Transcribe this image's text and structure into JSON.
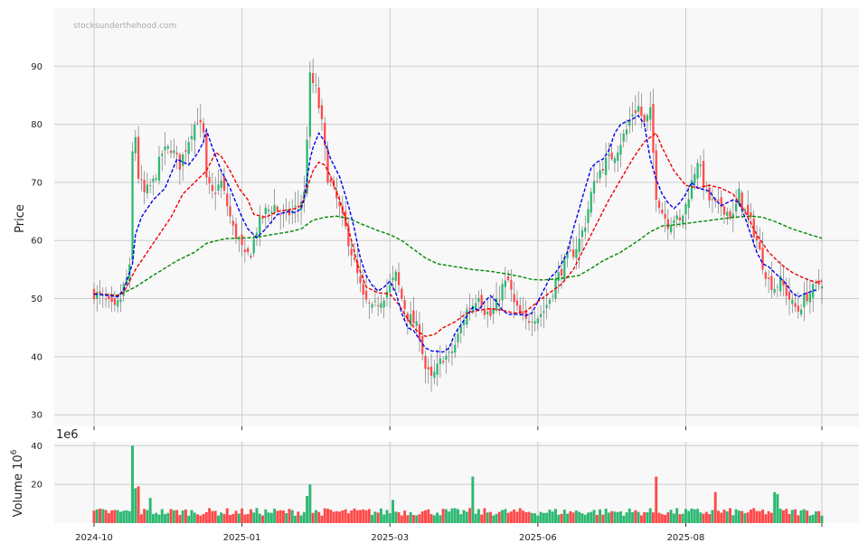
{
  "chart_data": [
    {
      "type": "candlestick",
      "watermark": "stocksunderthehood.com",
      "ylabel": "Price",
      "ylim": [
        28,
        100
      ],
      "yticks": [
        30,
        40,
        50,
        60,
        70,
        80,
        90
      ],
      "xticks": [
        "2024-10",
        "2025-01",
        "2025-03",
        "2025-06",
        "2025-08"
      ],
      "grid": true,
      "colors": {
        "up": "#2eb872",
        "down": "#ff4a4a",
        "ma_short": "#0000ee",
        "ma_mid": "#ee0000",
        "ma_long": "#008800",
        "panel_bg": "#f8f8f8",
        "grid": "#cccccc"
      },
      "close_anchors": [
        [
          0,
          51
        ],
        [
          3,
          50
        ],
        [
          5,
          49
        ],
        [
          7,
          48
        ],
        [
          9,
          50
        ],
        [
          10,
          52
        ],
        [
          12,
          55
        ],
        [
          13,
          75
        ],
        [
          14,
          78
        ],
        [
          15,
          71
        ],
        [
          17,
          68
        ],
        [
          20,
          70
        ],
        [
          23,
          75
        ],
        [
          26,
          76
        ],
        [
          29,
          73
        ],
        [
          31,
          76
        ],
        [
          33,
          79
        ],
        [
          35,
          81
        ],
        [
          37,
          78
        ],
        [
          38,
          70
        ],
        [
          40,
          68
        ],
        [
          43,
          70
        ],
        [
          45,
          66
        ],
        [
          47,
          62
        ],
        [
          49,
          60
        ],
        [
          51,
          57
        ],
        [
          53,
          58
        ],
        [
          55,
          62
        ],
        [
          58,
          65
        ],
        [
          61,
          66
        ],
        [
          64,
          64
        ],
        [
          67,
          65
        ],
        [
          69,
          66
        ],
        [
          71,
          68
        ],
        [
          73,
          88
        ],
        [
          75,
          86
        ],
        [
          77,
          80
        ],
        [
          79,
          71
        ],
        [
          82,
          67
        ],
        [
          85,
          62
        ],
        [
          88,
          56
        ],
        [
          91,
          50
        ],
        [
          94,
          48
        ],
        [
          97,
          50
        ],
        [
          100,
          52
        ],
        [
          102,
          54
        ],
        [
          104,
          50
        ],
        [
          106,
          47
        ],
        [
          108,
          46
        ],
        [
          110,
          44
        ],
        [
          112,
          38
        ],
        [
          114,
          36
        ],
        [
          116,
          38
        ],
        [
          118,
          40
        ],
        [
          120,
          40
        ],
        [
          122,
          42
        ],
        [
          124,
          45
        ],
        [
          126,
          48
        ],
        [
          128,
          49
        ],
        [
          130,
          51
        ],
        [
          132,
          48
        ],
        [
          134,
          47
        ],
        [
          136,
          49
        ],
        [
          138,
          52
        ],
        [
          140,
          53
        ],
        [
          142,
          49
        ],
        [
          144,
          47
        ],
        [
          146,
          46
        ],
        [
          148,
          47
        ],
        [
          150,
          47
        ],
        [
          152,
          48
        ],
        [
          154,
          50
        ],
        [
          156,
          53
        ],
        [
          158,
          55
        ],
        [
          160,
          57
        ],
        [
          162,
          58
        ],
        [
          164,
          60
        ],
        [
          166,
          63
        ],
        [
          168,
          68
        ],
        [
          170,
          71
        ],
        [
          172,
          73
        ],
        [
          174,
          74
        ],
        [
          176,
          75
        ],
        [
          178,
          77
        ],
        [
          180,
          79
        ],
        [
          182,
          82
        ],
        [
          184,
          83
        ],
        [
          186,
          80
        ],
        [
          188,
          82
        ],
        [
          190,
          68
        ],
        [
          192,
          65
        ],
        [
          194,
          63
        ],
        [
          196,
          64
        ],
        [
          198,
          63
        ],
        [
          200,
          66
        ],
        [
          202,
          70
        ],
        [
          204,
          74
        ],
        [
          206,
          70
        ],
        [
          208,
          67
        ],
        [
          210,
          66
        ],
        [
          212,
          66
        ],
        [
          214,
          65
        ],
        [
          216,
          64
        ],
        [
          218,
          68
        ],
        [
          220,
          65
        ],
        [
          222,
          63
        ],
        [
          224,
          60
        ],
        [
          226,
          56
        ],
        [
          228,
          53
        ],
        [
          230,
          52
        ],
        [
          232,
          53
        ],
        [
          234,
          51
        ],
        [
          236,
          49
        ],
        [
          238,
          48
        ],
        [
          240,
          50
        ],
        [
          242,
          51
        ],
        [
          244,
          52
        ],
        [
          246,
          53
        ]
      ],
      "ma_short": [
        [
          0,
          50.8
        ],
        [
          4,
          50.6
        ],
        [
          8,
          50.3
        ],
        [
          10,
          51.5
        ],
        [
          13,
          56
        ],
        [
          14,
          61
        ],
        [
          16,
          64
        ],
        [
          20,
          67
        ],
        [
          24,
          69
        ],
        [
          28,
          74
        ],
        [
          32,
          73
        ],
        [
          35,
          75
        ],
        [
          37,
          77
        ],
        [
          38,
          79
        ],
        [
          40,
          76
        ],
        [
          43,
          72
        ],
        [
          46,
          69
        ],
        [
          50,
          64
        ],
        [
          52,
          62
        ],
        [
          55,
          60.5
        ],
        [
          58,
          62
        ],
        [
          62,
          64.5
        ],
        [
          66,
          65
        ],
        [
          68,
          64.8
        ],
        [
          70,
          65.5
        ],
        [
          71,
          67
        ],
        [
          73,
          74
        ],
        [
          74,
          76
        ],
        [
          76,
          78.5
        ],
        [
          78,
          77
        ],
        [
          80,
          74
        ],
        [
          83,
          71
        ],
        [
          86,
          66
        ],
        [
          88,
          62
        ],
        [
          90,
          57
        ],
        [
          92,
          54
        ],
        [
          94,
          52.3
        ],
        [
          96,
          51.3
        ],
        [
          98,
          52
        ],
        [
          100,
          53
        ],
        [
          102,
          51
        ],
        [
          104,
          47.5
        ],
        [
          106,
          45
        ],
        [
          108,
          44.5
        ],
        [
          110,
          43
        ],
        [
          112,
          41.5
        ],
        [
          114,
          41
        ],
        [
          118,
          40.8
        ],
        [
          120,
          41.5
        ],
        [
          122,
          44
        ],
        [
          124,
          45.5
        ],
        [
          126,
          47
        ],
        [
          128,
          48.5
        ],
        [
          130,
          48
        ],
        [
          132,
          49.5
        ],
        [
          134,
          50.5
        ],
        [
          136,
          49.5
        ],
        [
          138,
          48
        ],
        [
          140,
          47.3
        ],
        [
          144,
          47.3
        ],
        [
          146,
          47.1
        ],
        [
          148,
          47.5
        ],
        [
          150,
          49.5
        ],
        [
          152,
          51.5
        ],
        [
          154,
          53.5
        ],
        [
          156,
          54.5
        ],
        [
          158,
          56
        ],
        [
          160,
          58
        ],
        [
          162,
          62
        ],
        [
          164,
          65.5
        ],
        [
          166,
          69
        ],
        [
          168,
          72.5
        ],
        [
          170,
          73.5
        ],
        [
          172,
          74
        ],
        [
          174,
          75.5
        ],
        [
          176,
          78.5
        ],
        [
          178,
          80
        ],
        [
          180,
          80.5
        ],
        [
          182,
          80.9
        ],
        [
          184,
          81.5
        ],
        [
          186,
          80
        ],
        [
          188,
          74
        ],
        [
          190,
          70.5
        ],
        [
          192,
          68
        ],
        [
          194,
          66.5
        ],
        [
          196,
          65.5
        ],
        [
          198,
          66.5
        ],
        [
          200,
          68
        ],
        [
          202,
          70
        ],
        [
          204,
          69
        ],
        [
          206,
          68.8
        ],
        [
          208,
          68.5
        ],
        [
          210,
          67
        ],
        [
          212,
          66
        ],
        [
          214,
          66.5
        ],
        [
          216,
          67
        ],
        [
          218,
          66.5
        ],
        [
          220,
          64
        ],
        [
          222,
          61
        ],
        [
          224,
          58
        ],
        [
          226,
          56
        ],
        [
          228,
          55.5
        ],
        [
          230,
          54.5
        ],
        [
          232,
          53.5
        ],
        [
          234,
          52.5
        ],
        [
          236,
          51
        ],
        [
          238,
          50.3
        ],
        [
          240,
          50.8
        ],
        [
          244,
          51.5
        ]
      ],
      "ma_mid": [
        [
          0,
          50.8
        ],
        [
          4,
          50.7
        ],
        [
          8,
          50.5
        ],
        [
          10,
          51
        ],
        [
          14,
          55
        ],
        [
          18,
          58
        ],
        [
          22,
          61
        ],
        [
          26,
          64
        ],
        [
          30,
          68
        ],
        [
          34,
          70
        ],
        [
          38,
          72
        ],
        [
          40,
          74
        ],
        [
          41,
          75.2
        ],
        [
          43,
          74.5
        ],
        [
          46,
          72
        ],
        [
          49,
          69
        ],
        [
          52,
          67
        ],
        [
          54,
          64.5
        ],
        [
          58,
          64
        ],
        [
          62,
          65
        ],
        [
          66,
          65.3
        ],
        [
          68,
          65.5
        ],
        [
          70,
          66
        ],
        [
          72,
          69
        ],
        [
          74,
          72
        ],
        [
          76,
          73.5
        ],
        [
          78,
          73
        ],
        [
          80,
          71
        ],
        [
          83,
          67
        ],
        [
          86,
          62
        ],
        [
          89,
          56
        ],
        [
          92,
          52
        ],
        [
          96,
          51
        ],
        [
          100,
          50.8
        ],
        [
          103,
          49
        ],
        [
          106,
          46.5
        ],
        [
          109,
          44.5
        ],
        [
          112,
          43.5
        ],
        [
          115,
          43.8
        ],
        [
          118,
          45
        ],
        [
          122,
          46
        ],
        [
          126,
          47.5
        ],
        [
          130,
          48
        ],
        [
          134,
          48.3
        ],
        [
          138,
          48
        ],
        [
          142,
          47.5
        ],
        [
          146,
          47.8
        ],
        [
          150,
          49.5
        ],
        [
          154,
          51
        ],
        [
          158,
          52.5
        ],
        [
          162,
          55
        ],
        [
          166,
          59
        ],
        [
          170,
          63
        ],
        [
          174,
          67
        ],
        [
          178,
          70.5
        ],
        [
          182,
          74
        ],
        [
          186,
          77
        ],
        [
          190,
          78.5
        ],
        [
          192,
          76
        ],
        [
          196,
          72
        ],
        [
          200,
          69.5
        ],
        [
          204,
          69
        ],
        [
          208,
          69.5
        ],
        [
          212,
          69
        ],
        [
          216,
          68
        ],
        [
          220,
          65
        ],
        [
          224,
          61
        ],
        [
          228,
          58
        ],
        [
          232,
          56
        ],
        [
          236,
          54.5
        ],
        [
          240,
          53.5
        ],
        [
          244,
          52.8
        ],
        [
          246,
          53
        ]
      ],
      "ma_long": [
        [
          0,
          50.8
        ],
        [
          8,
          50.6
        ],
        [
          10,
          51
        ],
        [
          14,
          52
        ],
        [
          20,
          54
        ],
        [
          28,
          56.5
        ],
        [
          34,
          58
        ],
        [
          38,
          59.5
        ],
        [
          44,
          60.3
        ],
        [
          48,
          60.4
        ],
        [
          54,
          60.5
        ],
        [
          60,
          61
        ],
        [
          66,
          61.5
        ],
        [
          70,
          62
        ],
        [
          74,
          63.5
        ],
        [
          78,
          64
        ],
        [
          82,
          64.2
        ],
        [
          86,
          63.8
        ],
        [
          92,
          62.5
        ],
        [
          96,
          61.7
        ],
        [
          100,
          61
        ],
        [
          104,
          60
        ],
        [
          108,
          58.5
        ],
        [
          112,
          57
        ],
        [
          116,
          56
        ],
        [
          122,
          55.5
        ],
        [
          128,
          55
        ],
        [
          134,
          54.7
        ],
        [
          140,
          54.2
        ],
        [
          144,
          53.8
        ],
        [
          148,
          53.3
        ],
        [
          152,
          53.2
        ],
        [
          158,
          53.5
        ],
        [
          164,
          54
        ],
        [
          168,
          55.2
        ],
        [
          172,
          56.5
        ],
        [
          178,
          58
        ],
        [
          184,
          60
        ],
        [
          188,
          61.5
        ],
        [
          192,
          62.5
        ],
        [
          198,
          62.8
        ],
        [
          204,
          63.2
        ],
        [
          210,
          63.6
        ],
        [
          216,
          64
        ],
        [
          222,
          64.2
        ],
        [
          226,
          64
        ],
        [
          230,
          63.3
        ],
        [
          236,
          62
        ],
        [
          242,
          61
        ],
        [
          246,
          60.4
        ]
      ],
      "candle_count": 247
    },
    {
      "type": "bar",
      "ylabel": "Volume  10",
      "ylabel_exp": "6",
      "offset_label": "1e6",
      "ylim": [
        0,
        42
      ],
      "yticks": [
        20,
        40
      ],
      "volume_spikes": [
        [
          13,
          40
        ],
        [
          14,
          18
        ],
        [
          15,
          19
        ],
        [
          19,
          13
        ],
        [
          72,
          14
        ],
        [
          73,
          20
        ],
        [
          101,
          12
        ],
        [
          128,
          24
        ],
        [
          190,
          24
        ],
        [
          210,
          16
        ],
        [
          230,
          16
        ],
        [
          231,
          15
        ]
      ],
      "volume_base": 5
    }
  ]
}
